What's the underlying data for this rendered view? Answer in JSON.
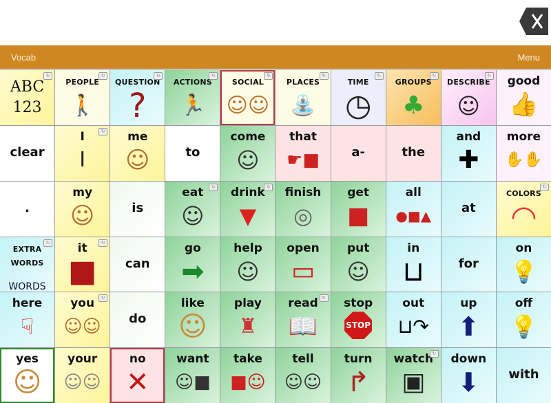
{
  "header": {
    "vocab_label": "Vocab",
    "menu_label": "Menu",
    "clear_icon": "backspace-x-icon"
  },
  "colors": {
    "topbar": "#cf8720"
  },
  "grid": [
    {
      "label": "ABC 123",
      "bg": "y",
      "icon": "abc-123",
      "folder": true,
      "cat": false
    },
    {
      "label": "PEOPLE",
      "bg": "ly",
      "icon": "people",
      "folder": true,
      "cat": true
    },
    {
      "label": "QUESTION",
      "bg": "c",
      "icon": "question-mark",
      "folder": true,
      "cat": true
    },
    {
      "label": "ACTIONS",
      "bg": "g",
      "icon": "running-person",
      "folder": true,
      "cat": true
    },
    {
      "label": "SOCIAL",
      "bg": "ly",
      "icon": "handshake",
      "folder": true,
      "cat": true,
      "border": "bred"
    },
    {
      "label": "PLACES",
      "bg": "ly",
      "icon": "park-bench",
      "folder": true,
      "cat": true
    },
    {
      "label": "TIME",
      "bg": "lv",
      "icon": "clock",
      "folder": true,
      "cat": true
    },
    {
      "label": "GROUPS",
      "bg": "o",
      "icon": "toys-tree",
      "folder": true,
      "cat": true
    },
    {
      "label": "DESCRIBE",
      "bg": "pk",
      "icon": "describe-person",
      "folder": true,
      "cat": true
    },
    {
      "label": "good",
      "bg": "lp",
      "icon": "thumbs-up"
    },
    {
      "label": "clear",
      "bg": "w",
      "center": true
    },
    {
      "label": "I",
      "bg": "y",
      "icon": "letter-i",
      "folder": true
    },
    {
      "label": "me",
      "bg": "y",
      "icon": "person-self"
    },
    {
      "label": "to",
      "bg": "w",
      "center": true
    },
    {
      "label": "come",
      "bg": "g",
      "icon": "person-beckon"
    },
    {
      "label": "that",
      "bg": "p",
      "icon": "point-square"
    },
    {
      "label": "a-",
      "bg": "p",
      "center": true
    },
    {
      "label": "the",
      "bg": "p",
      "center": true
    },
    {
      "label": "and",
      "bg": "c",
      "icon": "plus"
    },
    {
      "label": "more",
      "bg": "lp",
      "icon": "hands-more"
    },
    {
      "label": ".",
      "bg": "w",
      "center": true
    },
    {
      "label": "my",
      "bg": "y",
      "icon": "person-self"
    },
    {
      "label": "is",
      "bg": "lg",
      "center": true
    },
    {
      "label": "eat",
      "bg": "g",
      "icon": "person-eat",
      "folder": true
    },
    {
      "label": "drink",
      "bg": "g",
      "icon": "cup",
      "folder": true
    },
    {
      "label": "finish",
      "bg": "g",
      "icon": "plate-finish"
    },
    {
      "label": "get",
      "bg": "g",
      "icon": "grab-box"
    },
    {
      "label": "all",
      "bg": "c",
      "icon": "shapes"
    },
    {
      "label": "at",
      "bg": "c",
      "center": true
    },
    {
      "label": "COLORS",
      "bg": "y",
      "icon": "rainbow",
      "folder": true,
      "cat": true
    },
    {
      "label": "EXTRA WORDS",
      "bg": "c",
      "icon": "extra-words",
      "folder": true,
      "cat": true
    },
    {
      "label": "it",
      "bg": "y",
      "icon": "red-cube",
      "folder": true
    },
    {
      "label": "can",
      "bg": "lg",
      "center": true
    },
    {
      "label": "go",
      "bg": "g",
      "icon": "arrow-right"
    },
    {
      "label": "help",
      "bg": "g",
      "icon": "person-help"
    },
    {
      "label": "open",
      "bg": "g",
      "icon": "open-box"
    },
    {
      "label": "put",
      "bg": "g",
      "icon": "person-put"
    },
    {
      "label": "in",
      "bg": "c",
      "icon": "in-box"
    },
    {
      "label": "for",
      "bg": "c",
      "center": true
    },
    {
      "label": "on",
      "bg": "c",
      "icon": "lightbulb-on"
    },
    {
      "label": "here",
      "bg": "c",
      "icon": "point-here"
    },
    {
      "label": "you",
      "bg": "y",
      "icon": "point-you",
      "folder": true
    },
    {
      "label": "do",
      "bg": "lg",
      "center": true
    },
    {
      "label": "like",
      "bg": "g",
      "icon": "smiley"
    },
    {
      "label": "play",
      "bg": "g",
      "icon": "play-toys"
    },
    {
      "label": "read",
      "bg": "g",
      "icon": "book",
      "folder": true
    },
    {
      "label": "stop",
      "bg": "g",
      "icon": "stop-sign"
    },
    {
      "label": "out",
      "bg": "c",
      "icon": "out-box"
    },
    {
      "label": "up",
      "bg": "c",
      "icon": "arrow-up"
    },
    {
      "label": "off",
      "bg": "c",
      "icon": "lightbulb-off"
    },
    {
      "label": "yes",
      "bg": "w",
      "icon": "smiley",
      "border": "bgreen"
    },
    {
      "label": "your",
      "bg": "y",
      "icon": "point-your"
    },
    {
      "label": "no",
      "bg": "p",
      "icon": "red-x",
      "border": "bred"
    },
    {
      "label": "want",
      "bg": "g",
      "icon": "person-want"
    },
    {
      "label": "take",
      "bg": "g",
      "icon": "person-take"
    },
    {
      "label": "tell",
      "bg": "g",
      "icon": "person-tell"
    },
    {
      "label": "turn",
      "bg": "g",
      "icon": "turn-arrow"
    },
    {
      "label": "watch",
      "bg": "g",
      "icon": "tv-watch",
      "folder": true
    },
    {
      "label": "down",
      "bg": "c",
      "icon": "arrow-down"
    },
    {
      "label": "with",
      "bg": "c",
      "center": true
    }
  ]
}
